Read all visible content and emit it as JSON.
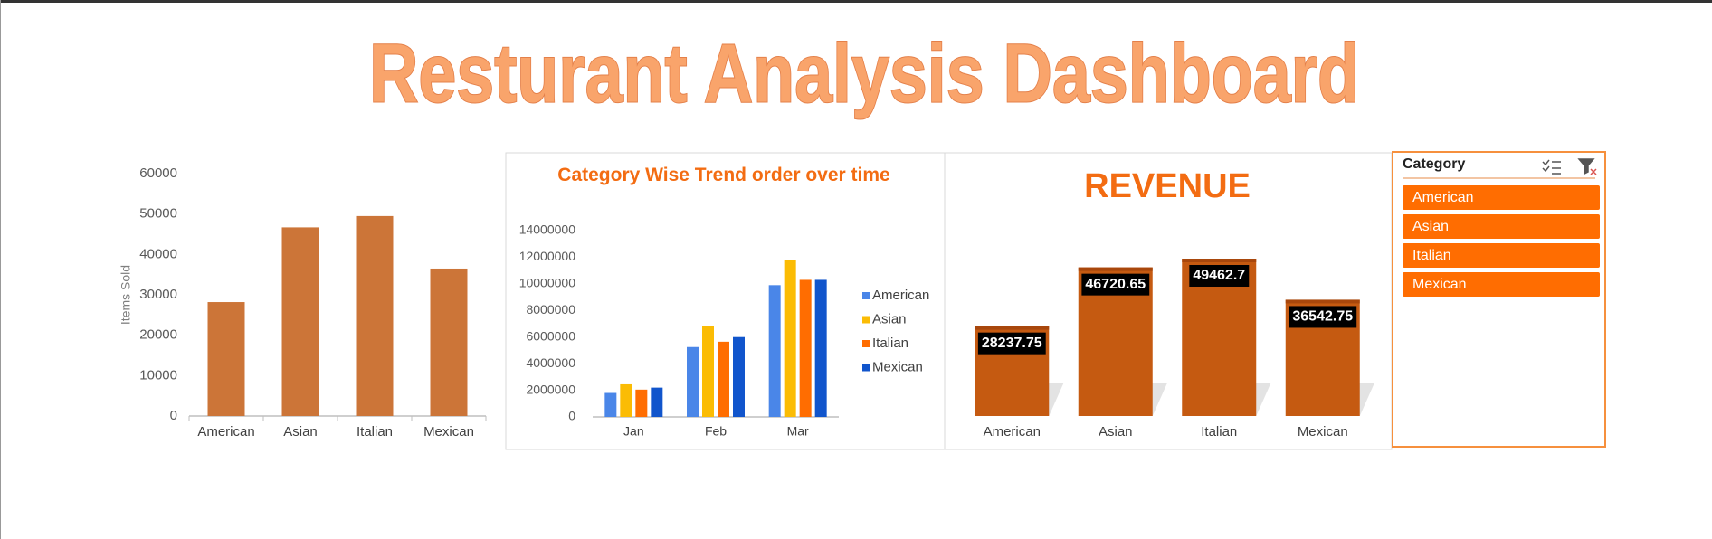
{
  "title": "Resturant Analysis Dashboard",
  "chart_data": [
    {
      "type": "bar",
      "y_label": "Items Sold",
      "categories": [
        "American",
        "Asian",
        "Italian",
        "Mexican"
      ],
      "values": [
        28200,
        46700,
        49500,
        36500
      ],
      "color": "#cc7538",
      "ylim": [
        0,
        60000
      ],
      "yticks": [
        0,
        10000,
        20000,
        30000,
        40000,
        50000,
        60000
      ],
      "grid": false
    },
    {
      "type": "bar",
      "title": "Category Wise Trend order over time",
      "categories": [
        "Jan",
        "Feb",
        "Mar"
      ],
      "series": [
        {
          "name": "American",
          "color": "#4a86e8",
          "values": [
            1800000,
            5250000,
            9900000
          ]
        },
        {
          "name": "Asian",
          "color": "#fbbc04",
          "values": [
            2450000,
            6800000,
            11800000
          ]
        },
        {
          "name": "Italian",
          "color": "#ff6d01",
          "values": [
            2050000,
            5650000,
            10300000
          ]
        },
        {
          "name": "Mexican",
          "color": "#1155cc",
          "values": [
            2200000,
            6000000,
            10300000
          ]
        }
      ],
      "ylim": [
        0,
        14000000
      ],
      "yticks": [
        0,
        2000000,
        4000000,
        6000000,
        8000000,
        10000000,
        12000000,
        14000000
      ],
      "grid": false,
      "legend": "right"
    },
    {
      "type": "bar",
      "title": "REVENUE",
      "categories": [
        "American",
        "Asian",
        "Italian",
        "Mexican"
      ],
      "values": [
        28237.75,
        46720.65,
        49462.7,
        36542.75
      ],
      "color": "#c55a11"
    }
  ],
  "slicer": {
    "title": "Category",
    "items": [
      "American",
      "Asian",
      "Italian",
      "Mexican"
    ]
  }
}
